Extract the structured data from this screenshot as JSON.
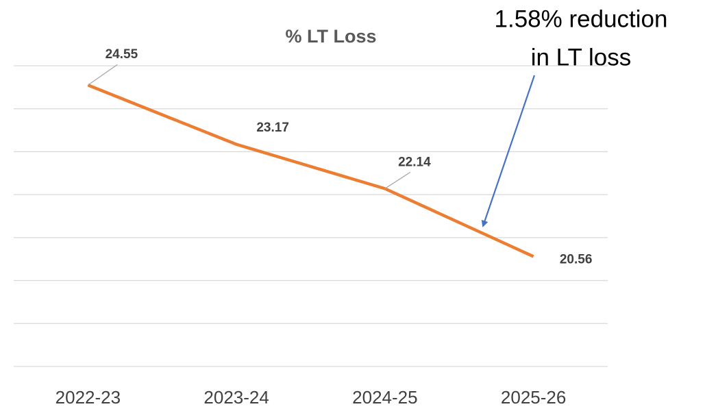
{
  "chart_data": {
    "type": "line",
    "title": "% LT Loss",
    "categories": [
      "2022-23",
      "2023-24",
      "2024-25",
      "2025-26"
    ],
    "series": [
      {
        "name": "% LT Loss",
        "color": "#ed7d31",
        "values": [
          24.55,
          23.17,
          22.14,
          20.56
        ]
      }
    ],
    "ylim": [
      18,
      25
    ],
    "yticks": [
      18,
      19,
      20,
      21,
      22,
      23,
      24,
      25
    ],
    "grid": true,
    "annotation": [
      "1.58% reduction",
      "in LT loss"
    ],
    "annotation_color": "#4472c4"
  }
}
